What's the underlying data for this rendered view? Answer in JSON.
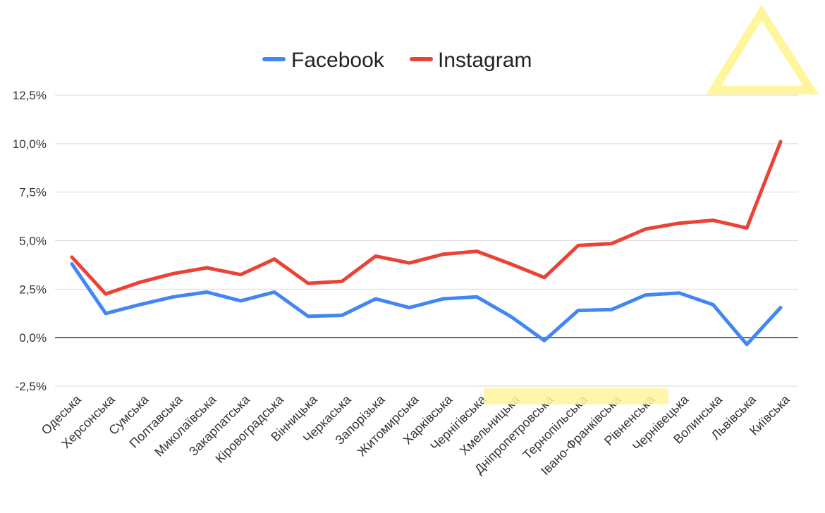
{
  "chart_data": {
    "type": "line",
    "title": "",
    "xlabel": "",
    "ylabel": "",
    "ylim": [
      -2.5,
      12.5
    ],
    "yticks": [
      -2.5,
      0,
      2.5,
      5,
      7.5,
      10,
      12.5
    ],
    "ytick_labels": [
      "-2,5%",
      "0,0%",
      "2,5%",
      "5,0%",
      "7,5%",
      "10,0%",
      "12,5%"
    ],
    "grid": true,
    "legend_position": "top-center",
    "categories": [
      "Одеська",
      "Херсонська",
      "Сумська",
      "Полтавська",
      "Миколаївська",
      "Закарпатська",
      "Кіровоградська",
      "Вінницька",
      "Черкаська",
      "Запорізька",
      "Житомирська",
      "Харківська",
      "Чернігівська",
      "Хмельницька",
      "Дніпропетровська",
      "Тернопільська",
      "Івано-Франківська",
      "Рівненська",
      "Чернівецька",
      "Волинська",
      "Львівська",
      "Київська"
    ],
    "series": [
      {
        "name": "Facebook",
        "color": "#4285F4",
        "values": [
          3.8,
          1.25,
          1.7,
          2.1,
          2.35,
          1.9,
          2.35,
          1.1,
          1.15,
          2.0,
          1.55,
          2.0,
          2.1,
          1.1,
          -0.15,
          1.4,
          1.45,
          2.2,
          2.3,
          1.7,
          -0.35,
          1.55
        ]
      },
      {
        "name": "Instagram",
        "color": "#EA4335",
        "values": [
          4.15,
          2.25,
          2.85,
          3.3,
          3.6,
          3.25,
          4.05,
          2.8,
          2.9,
          4.2,
          3.85,
          4.3,
          4.45,
          3.8,
          3.1,
          4.75,
          4.85,
          5.6,
          5.9,
          6.05,
          5.65,
          10.1
        ]
      }
    ]
  },
  "decorations": {
    "triangle_color": "#FFF59D",
    "highlight_color": "#FFF59D"
  }
}
